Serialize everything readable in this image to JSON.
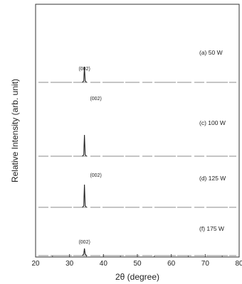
{
  "chart_data": {
    "type": "line",
    "xlabel": "2θ  (degree)",
    "ylabel": "Relative Intensity  (arb. unit)",
    "xlim": [
      20,
      80
    ],
    "x_ticks": [
      20,
      30,
      40,
      50,
      60,
      70,
      80
    ],
    "x_tick_labels": [
      "20",
      "30",
      "40",
      "50",
      "60",
      "70",
      "80"
    ],
    "grid": false,
    "legend": "none",
    "series": [
      {
        "name": "(a) 50 W",
        "peak_x": 34.4,
        "peak_label": "(002)"
      },
      {
        "name": "(c) 100 W",
        "peak_x": 34.4,
        "peak_label": "(002)"
      },
      {
        "name": "(d) 125 W",
        "peak_x": 34.4,
        "peak_label": "(002)"
      },
      {
        "name": "(f) 175 W",
        "peak_x": 34.4,
        "peak_label": "(002)"
      }
    ]
  }
}
